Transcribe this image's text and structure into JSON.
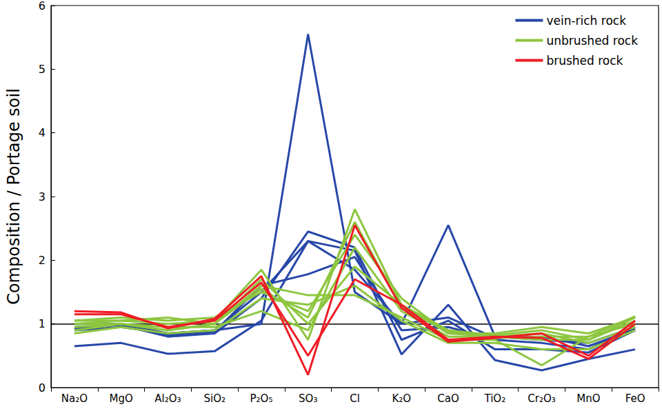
{
  "chart_data": {
    "type": "line",
    "y_label": "Composition / Portage soil",
    "categories": [
      "Na₂O",
      "MgO",
      "Al₂O₃",
      "SiO₂",
      "P₂O₅",
      "SO₃",
      "Cl",
      "K₂O",
      "CaO",
      "TiO₂",
      "Cr₂O₃",
      "MnO",
      "FeO"
    ],
    "ylim": [
      0,
      6
    ],
    "yticks": [
      0,
      1,
      2,
      3,
      4,
      5,
      6
    ],
    "reference_line": 1,
    "legend": "top-right",
    "grid": false,
    "series": [
      {
        "name": "vein-rich rock",
        "color": "#2747a8",
        "values": [
          0.9,
          0.95,
          0.85,
          0.9,
          1.0,
          5.55,
          1.5,
          1.0,
          2.55,
          0.8,
          0.75,
          0.7,
          0.95
        ]
      },
      {
        "name": "vein-rich rock",
        "color": "#2747a8",
        "values": [
          0.65,
          0.7,
          0.53,
          0.57,
          1.05,
          2.3,
          2.15,
          0.52,
          1.3,
          0.43,
          0.27,
          0.45,
          0.6
        ]
      },
      {
        "name": "vein-rich rock",
        "color": "#2747a8",
        "values": [
          0.95,
          0.98,
          0.8,
          0.85,
          1.4,
          2.45,
          2.2,
          0.75,
          1.05,
          0.6,
          0.6,
          0.55,
          0.9
        ]
      },
      {
        "name": "vein-rich rock",
        "color": "#2747a8",
        "values": [
          1.0,
          1.0,
          0.82,
          0.88,
          1.6,
          1.78,
          2.05,
          0.9,
          0.95,
          0.75,
          0.7,
          0.6,
          0.95
        ]
      },
      {
        "name": "vein-rich rock",
        "color": "#2747a8",
        "values": [
          0.92,
          1.0,
          0.85,
          0.9,
          1.5,
          2.3,
          1.85,
          1.0,
          1.1,
          0.78,
          0.8,
          0.65,
          0.92
        ]
      },
      {
        "name": "unbrushed rock",
        "color": "#8dc63f",
        "values": [
          1.0,
          1.05,
          1.0,
          1.05,
          1.85,
          0.75,
          2.8,
          1.3,
          0.85,
          0.8,
          0.75,
          0.75,
          1.1
        ]
      },
      {
        "name": "unbrushed rock",
        "color": "#8dc63f",
        "values": [
          0.9,
          1.0,
          0.9,
          1.0,
          1.6,
          1.45,
          1.45,
          1.1,
          0.75,
          0.75,
          0.35,
          0.8,
          1.0
        ]
      },
      {
        "name": "unbrushed rock",
        "color": "#8dc63f",
        "values": [
          1.05,
          1.1,
          1.05,
          1.1,
          1.5,
          1.2,
          2.4,
          1.4,
          0.85,
          0.85,
          0.95,
          0.85,
          1.1
        ]
      },
      {
        "name": "unbrushed rock",
        "color": "#8dc63f",
        "values": [
          0.95,
          1.0,
          0.95,
          0.95,
          1.2,
          0.9,
          2.2,
          1.2,
          0.8,
          0.8,
          0.85,
          0.7,
          0.95
        ]
      },
      {
        "name": "unbrushed rock",
        "color": "#8dc63f",
        "values": [
          1.05,
          1.05,
          1.1,
          1.0,
          1.7,
          1.0,
          1.9,
          1.3,
          0.9,
          0.82,
          0.9,
          0.75,
          1.05
        ]
      },
      {
        "name": "unbrushed rock",
        "color": "#8dc63f",
        "values": [
          0.85,
          0.95,
          0.85,
          0.9,
          1.4,
          1.3,
          1.6,
          1.05,
          0.7,
          0.7,
          0.6,
          0.6,
          0.9
        ]
      },
      {
        "name": "unbrushed rock",
        "color": "#8dc63f",
        "values": [
          1.0,
          1.0,
          0.9,
          1.0,
          1.55,
          1.1,
          2.6,
          1.25,
          0.88,
          0.78,
          0.8,
          0.8,
          1.12
        ]
      },
      {
        "name": "brushed rock",
        "color": "#ee1c25",
        "values": [
          1.2,
          1.18,
          0.93,
          1.08,
          1.75,
          0.2,
          2.55,
          1.25,
          0.72,
          0.78,
          0.85,
          0.5,
          1.05
        ]
      },
      {
        "name": "brushed rock",
        "color": "#ee1c25",
        "values": [
          1.15,
          1.15,
          0.95,
          1.05,
          1.65,
          0.5,
          1.7,
          1.3,
          0.75,
          0.8,
          0.78,
          0.45,
          1.0
        ]
      }
    ]
  }
}
